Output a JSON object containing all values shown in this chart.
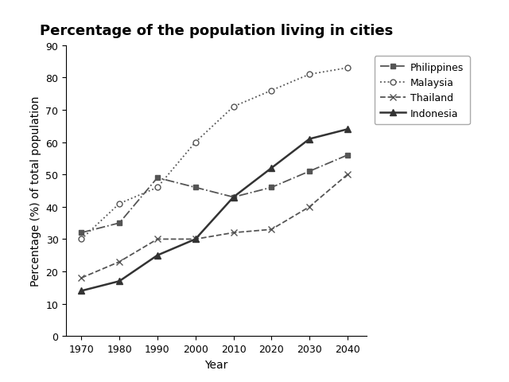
{
  "title": "Percentage of the population living in cities",
  "xlabel": "Year",
  "ylabel": "Percentage (%) of total population",
  "years": [
    1970,
    1980,
    1990,
    2000,
    2010,
    2020,
    2030,
    2040
  ],
  "series": [
    {
      "name": "Philippines",
      "values": [
        32,
        35,
        49,
        46,
        43,
        46,
        51,
        56
      ],
      "color": "#555555",
      "linestyle": "-.",
      "marker": "s",
      "markerfacecolor": "#555555",
      "linewidth": 1.3,
      "markersize": 5
    },
    {
      "name": "Malaysia",
      "values": [
        30,
        41,
        46,
        60,
        71,
        76,
        81,
        83
      ],
      "color": "#555555",
      "linestyle": ":",
      "marker": "o",
      "markerfacecolor": "white",
      "linewidth": 1.3,
      "markersize": 5
    },
    {
      "name": "Thailand",
      "values": [
        18,
        23,
        30,
        30,
        32,
        33,
        40,
        50
      ],
      "color": "#555555",
      "linestyle": "--",
      "marker": "x",
      "markerfacecolor": "#555555",
      "linewidth": 1.3,
      "markersize": 6
    },
    {
      "name": "Indonesia",
      "values": [
        14,
        17,
        25,
        30,
        43,
        52,
        61,
        64
      ],
      "color": "#333333",
      "linestyle": "-",
      "marker": "^",
      "markerfacecolor": "#333333",
      "linewidth": 1.8,
      "markersize": 6
    }
  ],
  "ylim": [
    0,
    90
  ],
  "yticks": [
    0,
    10,
    20,
    30,
    40,
    50,
    60,
    70,
    80,
    90
  ],
  "xticks": [
    1970,
    1980,
    1990,
    2000,
    2010,
    2020,
    2030,
    2040
  ],
  "xlim": [
    1966,
    2045
  ],
  "background_color": "#ffffff",
  "title_fontsize": 13,
  "axis_label_fontsize": 10,
  "tick_fontsize": 9,
  "legend_fontsize": 9
}
